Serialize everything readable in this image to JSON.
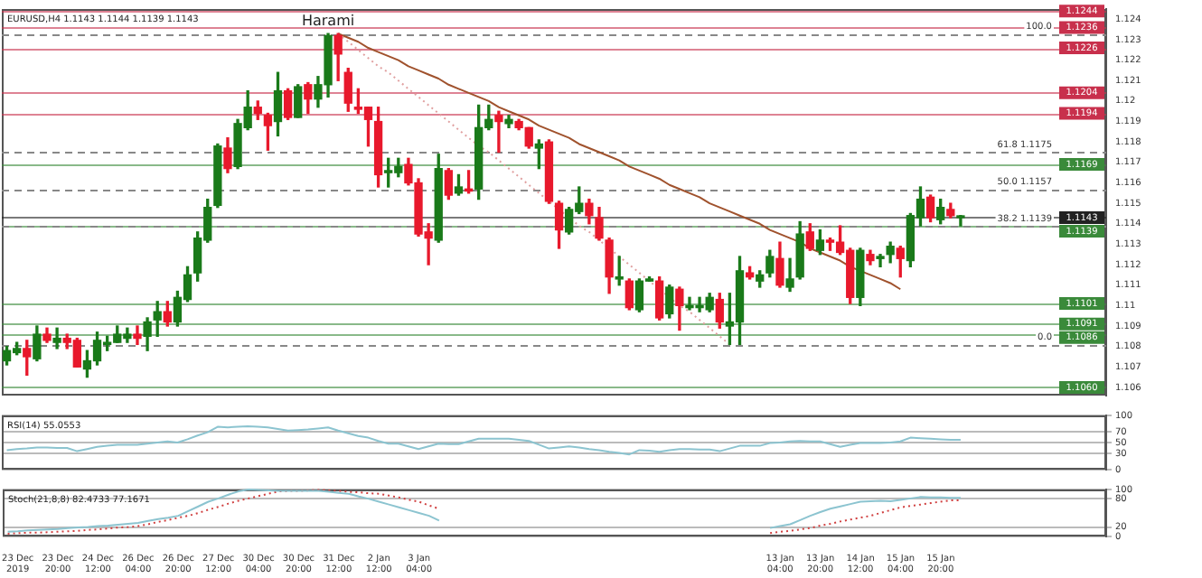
{
  "chart_data": [
    {
      "type": "candlestick",
      "title": "EURUSD,H4 1.1143 1.1144 1.1139 1.1143",
      "categories": [
        null,
        null,
        null,
        null,
        null,
        null,
        null,
        null,
        null,
        null,
        null,
        null,
        null,
        null,
        null,
        null,
        null,
        null,
        null,
        null,
        null,
        null,
        null,
        null,
        null,
        null,
        null,
        null,
        null,
        null,
        null,
        null,
        null,
        null,
        null,
        null,
        null,
        null,
        null,
        null,
        null,
        null,
        null,
        null,
        null,
        null,
        null,
        null,
        null,
        null,
        null,
        null,
        null,
        null,
        null,
        null,
        null,
        null,
        null,
        null,
        null,
        null,
        null,
        null,
        null,
        null,
        null,
        null,
        null,
        null,
        null,
        null,
        null,
        null,
        null,
        null,
        null,
        null,
        null,
        null,
        null,
        null,
        null,
        null,
        null,
        null,
        null,
        null,
        null,
        null,
        null,
        null,
        null,
        null,
        null,
        null,
        null,
        null,
        null,
        null,
        null,
        null,
        null,
        null,
        null,
        null,
        null,
        null,
        null,
        null
      ],
      "ohlc": [
        [
          1.1073,
          1.108,
          1.1071,
          1.1078
        ],
        [
          1.1077,
          1.1082,
          1.1076,
          1.1079
        ],
        [
          1.1079,
          1.1083,
          1.1066,
          1.1075
        ],
        [
          1.1074,
          1.109,
          1.1073,
          1.1086
        ],
        [
          1.1086,
          1.1089,
          1.1082,
          1.1083
        ],
        [
          1.1082,
          1.1089,
          1.1079,
          1.1084
        ],
        [
          1.1084,
          1.1086,
          1.1079,
          1.1082
        ],
        [
          1.1083,
          1.1084,
          1.107,
          1.107
        ],
        [
          1.1069,
          1.1078,
          1.1065,
          1.1073
        ],
        [
          1.1073,
          1.1087,
          1.1071,
          1.1083
        ],
        [
          1.1081,
          1.1085,
          1.1078,
          1.1082
        ],
        [
          1.1082,
          1.109,
          1.1082,
          1.1086
        ],
        [
          1.1084,
          1.1089,
          1.1082,
          1.1086
        ],
        [
          1.1086,
          1.109,
          1.1081,
          1.1084
        ],
        [
          1.1085,
          1.1094,
          1.1078,
          1.1092
        ],
        [
          1.1093,
          1.1102,
          1.1085,
          1.1097
        ],
        [
          1.1097,
          1.1102,
          1.109,
          1.1092
        ],
        [
          1.1092,
          1.1107,
          1.109,
          1.1104
        ],
        [
          1.1103,
          1.1119,
          1.1102,
          1.1115
        ],
        [
          1.1116,
          1.1136,
          1.1112,
          1.1133
        ],
        [
          1.1132,
          1.1152,
          1.1131,
          1.1148
        ],
        [
          1.1149,
          1.1179,
          1.1148,
          1.1178
        ],
        [
          1.1177,
          1.1182,
          1.1165,
          1.1167
        ],
        [
          1.1168,
          1.1191,
          1.1167,
          1.1189
        ],
        [
          1.1187,
          1.1205,
          1.1186,
          1.1197
        ],
        [
          1.1197,
          1.12,
          1.1191,
          1.1194
        ],
        [
          1.1193,
          1.1194,
          1.1176,
          1.1188
        ],
        [
          1.119,
          1.1214,
          1.1183,
          1.1205
        ],
        [
          1.1205,
          1.1206,
          1.1191,
          1.1192
        ],
        [
          1.1192,
          1.1208,
          1.1192,
          1.1207
        ],
        [
          1.1208,
          1.1209,
          1.1194,
          1.1201
        ],
        [
          1.1201,
          1.1212,
          1.1197,
          1.1208
        ],
        [
          1.1208,
          1.1233,
          1.1202,
          1.1232
        ],
        [
          1.1232,
          1.1233,
          1.121,
          1.1223
        ],
        [
          1.1214,
          1.1216,
          1.1195,
          1.1199
        ],
        [
          1.1197,
          1.1206,
          1.1194,
          1.1196
        ],
        [
          1.1197,
          1.1197,
          1.1178,
          1.1191
        ],
        [
          1.119,
          1.1197,
          1.1158,
          1.1164
        ],
        [
          1.1165,
          1.1172,
          1.1158,
          1.1166
        ],
        [
          1.1165,
          1.1172,
          1.1163,
          1.1168
        ],
        [
          1.1169,
          1.1172,
          1.1159,
          1.116
        ],
        [
          1.116,
          1.1162,
          1.1134,
          1.1135
        ],
        [
          1.1136,
          1.114,
          1.112,
          1.1133
        ],
        [
          1.1132,
          1.1174,
          1.1131,
          1.1167
        ],
        [
          1.1166,
          1.1167,
          1.1152,
          1.1154
        ],
        [
          1.1155,
          1.1164,
          1.1154,
          1.1158
        ],
        [
          1.1157,
          1.1166,
          1.1155,
          1.1156
        ],
        [
          1.1157,
          1.1198,
          1.1152,
          1.1187
        ],
        [
          1.1187,
          1.1198,
          1.1186,
          1.1191
        ],
        [
          1.1193,
          1.1195,
          1.1175,
          1.119
        ],
        [
          1.1189,
          1.1193,
          1.1187,
          1.1191
        ],
        [
          1.119,
          1.1191,
          1.1186,
          1.1187
        ],
        [
          1.1187,
          1.1187,
          1.1177,
          1.1178
        ],
        [
          1.1177,
          1.1181,
          1.1167,
          1.1179
        ],
        [
          1.118,
          1.1181,
          1.115,
          1.1151
        ],
        [
          1.115,
          1.1151,
          1.1128,
          1.1137
        ],
        [
          1.1136,
          1.1148,
          1.1135,
          1.1147
        ],
        [
          1.1146,
          1.1158,
          1.1145,
          1.115
        ],
        [
          1.115,
          1.1152,
          1.114,
          1.1144
        ],
        [
          1.1143,
          1.1148,
          1.1132,
          1.1133
        ],
        [
          1.1132,
          1.1133,
          1.1106,
          1.1114
        ],
        [
          1.1113,
          1.1124,
          1.111,
          1.1114
        ],
        [
          1.1112,
          1.1113,
          1.1098,
          1.1099
        ],
        [
          1.1098,
          1.1113,
          1.1097,
          1.1112
        ],
        [
          1.1112,
          1.1114,
          1.1112,
          1.1113
        ],
        [
          1.1112,
          1.1114,
          1.1093,
          1.1094
        ],
        [
          1.1096,
          1.111,
          1.1094,
          1.1109
        ],
        [
          1.1108,
          1.1109,
          1.1088,
          1.11
        ],
        [
          1.1099,
          1.1104,
          1.1098,
          1.11
        ],
        [
          1.1099,
          1.1104,
          1.1097,
          1.11
        ],
        [
          1.1098,
          1.1106,
          1.1097,
          1.1104
        ],
        [
          1.1103,
          1.1106,
          1.1089,
          1.1092
        ],
        [
          1.109,
          1.1106,
          1.1081,
          1.1092
        ],
        [
          1.1092,
          1.1124,
          1.1081,
          1.1117
        ],
        [
          1.1116,
          1.1119,
          1.1113,
          1.1114
        ],
        [
          1.1112,
          1.1117,
          1.1109,
          1.1115
        ],
        [
          1.1116,
          1.1127,
          1.1114,
          1.1124
        ],
        [
          1.1123,
          1.1131,
          1.1109,
          1.111
        ],
        [
          1.1109,
          1.1123,
          1.1107,
          1.1113
        ],
        [
          1.1114,
          1.1141,
          1.1113,
          1.1135
        ],
        [
          1.1136,
          1.114,
          1.1127,
          1.1128
        ],
        [
          1.1127,
          1.1137,
          1.1125,
          1.1132
        ],
        [
          1.1132,
          1.1133,
          1.1127,
          1.1131
        ],
        [
          1.1131,
          1.1139,
          1.1125,
          1.1126
        ],
        [
          1.1127,
          1.1128,
          1.1101,
          1.1104
        ],
        [
          1.1104,
          1.1128,
          1.11,
          1.1127
        ],
        [
          1.1125,
          1.1127,
          1.112,
          1.1122
        ],
        [
          1.1123,
          1.1125,
          1.1119,
          1.1124
        ],
        [
          1.1125,
          1.1131,
          1.1121,
          1.1129
        ],
        [
          1.1128,
          1.1129,
          1.1114,
          1.1123
        ],
        [
          1.1122,
          1.1145,
          1.1119,
          1.1144
        ],
        [
          1.1143,
          1.1158,
          1.1139,
          1.1152
        ],
        [
          1.1153,
          1.1154,
          1.1141,
          1.1143
        ],
        [
          1.1142,
          1.1152,
          1.114,
          1.1148
        ],
        [
          1.1147,
          1.115,
          1.1143,
          1.1144
        ],
        [
          1.1143,
          1.1144,
          1.1139,
          1.1143
        ],
        null,
        null,
        null,
        null,
        null,
        null,
        null,
        null,
        null,
        null,
        null,
        null,
        null,
        null
      ],
      "colors": [
        "#1a7a1a",
        "#1a7a1a",
        "#e8192c",
        "#1a7a1a",
        "#e8192c",
        "#1a7a1a",
        "#e8192c",
        "#e8192c",
        "#1a7a1a",
        "#1a7a1a",
        "#1a7a1a",
        "#1a7a1a",
        "#1a7a1a",
        "#e8192c",
        "#1a7a1a",
        "#1a7a1a",
        "#e8192c",
        "#1a7a1a",
        "#1a7a1a",
        "#1a7a1a",
        "#1a7a1a",
        "#1a7a1a",
        "#e8192c",
        "#1a7a1a",
        "#1a7a1a",
        "#e8192c",
        "#e8192c",
        "#1a7a1a",
        "#e8192c",
        "#1a7a1a",
        "#e8192c",
        "#1a7a1a",
        "#1a7a1a",
        "#e8192c",
        "#e8192c",
        "#e8192c",
        "#e8192c",
        "#e8192c",
        "#1a7a1a",
        "#1a7a1a",
        "#e8192c",
        "#e8192c",
        "#e8192c",
        "#1a7a1a",
        "#e8192c",
        "#1a7a1a",
        "#e8192c",
        "#1a7a1a",
        "#1a7a1a",
        "#e8192c",
        "#1a7a1a",
        "#e8192c",
        "#e8192c",
        "#1a7a1a",
        "#e8192c",
        "#e8192c",
        "#1a7a1a",
        "#1a7a1a",
        "#e8192c",
        "#e8192c",
        "#e8192c",
        "#1a7a1a",
        "#e8192c",
        "#1a7a1a",
        "#1a7a1a",
        "#e8192c",
        "#1a7a1a",
        "#e8192c",
        "#1a7a1a",
        "#1a7a1a",
        "#1a7a1a",
        "#e8192c",
        "#1a7a1a",
        "#1a7a1a",
        "#e8192c",
        "#1a7a1a",
        "#1a7a1a",
        "#e8192c",
        "#1a7a1a",
        "#1a7a1a",
        "#e8192c",
        "#1a7a1a",
        "#e8192c",
        "#e8192c",
        "#e8192c",
        "#1a7a1a",
        "#e8192c",
        "#1a7a1a",
        "#1a7a1a",
        "#e8192c",
        "#1a7a1a",
        "#1a7a1a",
        "#e8192c",
        "#1a7a1a",
        "#e8192c",
        "#1a7a1a",
        null,
        null,
        null,
        null,
        null,
        null,
        null,
        null,
        null,
        null,
        null,
        null,
        null,
        null
      ],
      "series": [
        {
          "type": "line",
          "color": "#a0522d",
          "values": [
            null,
            null,
            null,
            null,
            null,
            null,
            null,
            null,
            null,
            null,
            null,
            null,
            null,
            null,
            null,
            null,
            null,
            null,
            null,
            null,
            null,
            null,
            null,
            null,
            null,
            null,
            null,
            null,
            null,
            null,
            null,
            null,
            null,
            1.1233,
            1.1231,
            1.1229,
            1.1226,
            1.1224,
            1.1222,
            1.122,
            1.1217,
            1.1215,
            1.1213,
            1.1211,
            1.1208,
            1.1206,
            1.1204,
            1.1202,
            1.12,
            1.1197,
            1.1195,
            1.1193,
            1.1191,
            1.1188,
            1.1186,
            1.1184,
            1.1182,
            1.1179,
            1.1177,
            1.1175,
            1.1173,
            1.1171,
            1.1168,
            1.1166,
            1.1164,
            1.1162,
            1.1159,
            1.1157,
            1.1155,
            1.1153,
            1.115,
            1.1148,
            1.1146,
            1.1144,
            1.1142,
            1.114,
            1.1137,
            1.1135,
            1.1133,
            1.1131,
            1.1128,
            1.1126,
            1.1124,
            1.1122,
            1.1119,
            1.1117,
            1.1115,
            1.1113,
            1.1111,
            1.1108,
            null,
            null,
            null,
            null,
            null,
            null,
            null,
            null,
            null,
            null,
            null,
            null,
            null,
            null,
            null,
            null,
            null,
            null,
            null,
            null
          ]
        },
        {
          "type": "line",
          "color": "#e0a0a0",
          "line_style": "dotted",
          "values": [
            null,
            null,
            null,
            null,
            null,
            null,
            null,
            null,
            null,
            null,
            null,
            null,
            null,
            null,
            null,
            null,
            null,
            null,
            null,
            null,
            null,
            null,
            null,
            null,
            null,
            null,
            null,
            null,
            null,
            null,
            null,
            null,
            null,
            1.1233,
            1.1229,
            1.1225,
            1.1221,
            1.1217,
            1.1214,
            1.121,
            1.1206,
            1.1202,
            1.1198,
            1.1194,
            1.119,
            1.1186,
            1.1182,
            1.1178,
            1.1175,
            1.1171,
            1.1167,
            1.1163,
            1.1159,
            1.1155,
            1.1151,
            1.1147,
            1.1143,
            1.1139,
            1.1136,
            1.1132,
            1.1128,
            1.1124,
            1.112,
            1.1116,
            1.1112,
            1.1108,
            1.1104,
            1.11,
            1.1097,
            1.1093,
            1.1089,
            1.1085,
            1.1081,
            null,
            null,
            null,
            null,
            null,
            null,
            null,
            null,
            null,
            null,
            null,
            null,
            null,
            null,
            null,
            null,
            null,
            null,
            null,
            null,
            null,
            null,
            null,
            null,
            null,
            null,
            null,
            null,
            null,
            null,
            null,
            null,
            null,
            null,
            null,
            null,
            null
          ]
        }
      ],
      "ylim": [
        1.1056,
        1.1245
      ],
      "yticks": [
        1.106,
        1.107,
        1.108,
        1.109,
        1.11,
        1.111,
        1.112,
        1.113,
        1.114,
        1.115,
        1.116,
        1.117,
        1.118,
        1.119,
        1.12,
        1.121,
        1.122,
        1.123,
        1.124
      ],
      "tick_labels": "y",
      "ref_lines": [
        {
          "axis": "y",
          "value": 1.1244,
          "label": "1.1244",
          "color": "#c8304c"
        },
        {
          "axis": "y",
          "value": 1.1236,
          "label": "1.1236",
          "color": "#c8304c"
        },
        {
          "axis": "y",
          "value": 1.1226,
          "label": "1.1226",
          "color": "#c8304c"
        },
        {
          "axis": "y",
          "value": 1.1204,
          "label": "1.1204",
          "color": "#c8304c"
        },
        {
          "axis": "y",
          "value": 1.1194,
          "label": "1.1194",
          "color": "#c8304c"
        },
        {
          "axis": "y",
          "value": 1.1169,
          "label": "1.1169",
          "color": "#3a8a3a"
        },
        {
          "axis": "y",
          "value": 1.1139,
          "label": "1.1139",
          "color": "#3a8a3a"
        },
        {
          "axis": "y",
          "value": 1.1101,
          "label": "1.1101",
          "color": "#3a8a3a"
        },
        {
          "axis": "y",
          "value": 1.1091,
          "label": "1.1091",
          "color": "#3a8a3a"
        },
        {
          "axis": "y",
          "value": 1.1086,
          "label": "1.1086",
          "color": "#3a8a3a"
        },
        {
          "axis": "y",
          "value": 1.106,
          "label": "1.1060",
          "color": "#3a8a3a"
        },
        {
          "axis": "y",
          "value": 1.1143,
          "label": "1.1143",
          "color": "#222222"
        },
        {
          "axis": "y",
          "value": 1.1233,
          "color": "#888888",
          "line_style": "dashed"
        },
        {
          "axis": "y",
          "value": 1.1175,
          "label": "61.8 1.1175",
          "color": "#888888",
          "line_style": "dashed"
        },
        {
          "axis": "y",
          "value": 1.1157,
          "label": "50.0 1.1157",
          "color": "#888888",
          "line_style": "dashed"
        },
        {
          "axis": "y",
          "value": 1.1139,
          "label": "38.2 1.1139",
          "color": "#888888",
          "line_style": "dashed"
        },
        {
          "axis": "y",
          "value": 1.1081,
          "color": "#888888",
          "line_style": "dashed"
        }
      ],
      "annotations": [
        {
          "text": "Harami",
          "y": 1.1239
        },
        {
          "text": "100.0",
          "y": 1.1233
        },
        {
          "text": "0.0",
          "y": 1.1081
        }
      ]
    },
    {
      "type": "line",
      "title": "RSI(14) 55.0553",
      "categories": [
        null,
        null,
        null,
        null,
        null,
        null,
        null,
        null,
        null,
        null,
        null,
        null,
        null,
        null,
        null,
        null,
        null,
        null,
        null,
        null,
        null,
        null,
        null,
        null,
        null,
        null,
        null,
        null,
        null,
        null,
        null,
        null,
        null,
        null,
        null,
        null,
        null,
        null,
        null,
        null,
        null,
        null,
        null,
        null,
        null,
        null,
        null,
        null,
        null,
        null,
        null,
        null,
        null,
        null,
        null,
        null,
        null,
        null,
        null,
        null,
        null,
        null,
        null,
        null,
        null,
        null,
        null,
        null,
        null,
        null,
        null,
        null,
        null,
        null,
        null,
        null,
        null,
        null,
        null,
        null,
        null,
        null,
        null,
        null,
        null,
        null,
        null,
        null,
        null,
        null,
        null,
        null,
        null,
        null,
        null,
        null,
        null,
        null,
        null,
        null,
        null,
        null,
        null,
        null,
        null,
        null,
        null,
        null,
        null,
        null
      ],
      "series": [
        {
          "color": "#8cc4d0",
          "values": [
            36,
            38,
            39,
            41,
            41,
            40,
            40,
            34,
            38,
            42,
            44,
            46,
            46,
            46,
            48,
            50,
            52,
            50,
            56,
            63,
            69,
            79,
            78,
            79,
            80,
            79,
            78,
            75,
            72,
            73,
            74,
            76,
            78,
            72,
            67,
            62,
            59,
            53,
            48,
            48,
            43,
            38,
            43,
            48,
            47,
            47,
            52,
            57,
            57,
            57,
            57,
            55,
            53,
            46,
            39,
            41,
            43,
            41,
            38,
            36,
            33,
            31,
            28,
            36,
            35,
            33,
            36,
            38,
            38,
            37,
            37,
            34,
            39,
            44,
            44,
            44,
            49,
            50,
            52,
            53,
            52,
            52,
            47,
            42,
            46,
            49,
            49,
            49,
            50,
            52,
            59,
            58,
            57,
            56,
            55,
            55,
            null,
            null,
            null,
            null,
            null,
            null,
            null,
            null,
            null,
            null,
            null,
            null,
            null,
            null
          ]
        }
      ],
      "ylim": [
        0,
        100
      ],
      "yticks": [
        0,
        30,
        50,
        70,
        100
      ],
      "grid": "y",
      "tick_labels": "y"
    },
    {
      "type": "line",
      "title": "Stoch(21,8,8) 82.4733 77.1671",
      "categories": [
        null,
        "23 Dec 2019",
        null,
        null,
        null,
        "23 Dec 20:00",
        null,
        null,
        null,
        "24 Dec 12:00",
        null,
        null,
        null,
        "26 Dec 04:00",
        null,
        null,
        null,
        "26 Dec 20:00",
        null,
        null,
        null,
        "27 Dec 12:00",
        null,
        null,
        null,
        "30 Dec 04:00",
        null,
        null,
        null,
        "30 Dec 20:00",
        null,
        null,
        null,
        "31 Dec 12:00",
        null,
        null,
        null,
        "2 Jan 12:00",
        null,
        null,
        null,
        "3 Jan 04:00",
        null,
        null,
        null,
        null,
        null,
        null,
        null,
        null,
        null,
        null,
        null,
        null,
        null,
        null,
        null,
        null,
        null,
        null,
        null,
        null,
        null,
        null,
        null,
        null,
        null,
        null,
        null,
        null,
        null,
        null,
        null,
        null,
        null,
        null,
        null,
        "13 Jan 04:00",
        null,
        null,
        null,
        "13 Jan 20:00",
        null,
        null,
        null,
        "14 Jan 12:00",
        null,
        null,
        null,
        "15 Jan 04:00",
        null,
        null,
        null,
        "15 Jan 20:00",
        null,
        null,
        null,
        null,
        null,
        null,
        null,
        null,
        null,
        null,
        null,
        null,
        null,
        null,
        null,
        null
      ],
      "series": [
        {
          "color": "#8cc4d0",
          "values": [
            10,
            11,
            13,
            14,
            15,
            16,
            18,
            19,
            20,
            22,
            23,
            25,
            27,
            29,
            33,
            37,
            40,
            44,
            54,
            64,
            74,
            81,
            89,
            96,
            100,
            99,
            98,
            97,
            97,
            97,
            97,
            97,
            95,
            93,
            91,
            85,
            80,
            74,
            68,
            62,
            56,
            50,
            44,
            34,
            null,
            null,
            null,
            null,
            null,
            null,
            null,
            null,
            null,
            null,
            null,
            null,
            null,
            null,
            null,
            null,
            null,
            null,
            null,
            null,
            null,
            null,
            null,
            null,
            null,
            null,
            null,
            null,
            null,
            null,
            null,
            null,
            18,
            22,
            26,
            35,
            44,
            52,
            59,
            64,
            69,
            74,
            75,
            76,
            75,
            78,
            81,
            84,
            83,
            83,
            82,
            82,
            null,
            null,
            null,
            null,
            null,
            null,
            null,
            null,
            null,
            null,
            null,
            null,
            null,
            null
          ]
        },
        {
          "color": "#d04040",
          "line_style": "dotted",
          "values": [
            6,
            7,
            8,
            8,
            9,
            10,
            11,
            12,
            14,
            15,
            17,
            19,
            20,
            22,
            26,
            31,
            35,
            40,
            44,
            50,
            57,
            63,
            70,
            76,
            81,
            86,
            91,
            96,
            97,
            97,
            98,
            99,
            98,
            97,
            95,
            94,
            92,
            91,
            87,
            83,
            78,
            74,
            66,
            59,
            null,
            null,
            null,
            null,
            null,
            null,
            null,
            null,
            null,
            null,
            null,
            null,
            null,
            null,
            null,
            null,
            null,
            null,
            null,
            null,
            null,
            null,
            null,
            null,
            null,
            null,
            null,
            null,
            null,
            null,
            null,
            null,
            7,
            10,
            12,
            15,
            18,
            23,
            27,
            32,
            36,
            40,
            44,
            50,
            56,
            62,
            65,
            68,
            71,
            74,
            77,
            77,
            null,
            null,
            null,
            null,
            null,
            null,
            null,
            null,
            null,
            null,
            null,
            null,
            null,
            null
          ]
        }
      ],
      "ylim": [
        0,
        100
      ],
      "yticks": [
        0,
        20,
        80,
        100
      ],
      "grid": "y"
    }
  ]
}
